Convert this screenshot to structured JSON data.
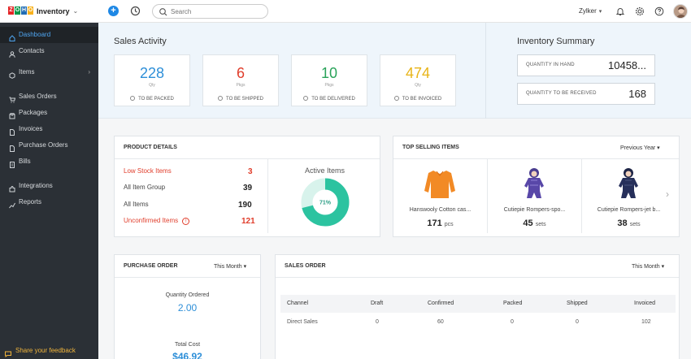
{
  "app": {
    "brand_letters": [
      "Z",
      "O",
      "H",
      "O"
    ],
    "brand_colors": [
      "#e42527",
      "#089949",
      "#226db4",
      "#f9b21d"
    ],
    "name": "Inventory",
    "search_placeholder": "Search",
    "org": "Zylker"
  },
  "sidebar": {
    "items": [
      {
        "label": "Dashboard",
        "icon": "home-icon",
        "active": true
      },
      {
        "label": "Contacts",
        "icon": "person-icon"
      },
      {
        "label": "Items",
        "icon": "box-icon",
        "chevron": "›"
      },
      {
        "label": "Sales Orders",
        "icon": "cart-icon"
      },
      {
        "label": "Packages",
        "icon": "package-icon"
      },
      {
        "label": "Invoices",
        "icon": "document-icon"
      },
      {
        "label": "Purchase Orders",
        "icon": "document-icon"
      },
      {
        "label": "Bills",
        "icon": "bill-icon"
      },
      {
        "label": "Integrations",
        "icon": "puzzle-icon"
      },
      {
        "label": "Reports",
        "icon": "chart-icon"
      }
    ],
    "feedback": "Share your feedback"
  },
  "sales_activity": {
    "title": "Sales Activity",
    "cards": [
      {
        "value": "228",
        "unit": "Qty",
        "label": "TO BE PACKED",
        "color": "#2e8fd8"
      },
      {
        "value": "6",
        "unit": "Pkgs",
        "label": "TO BE SHIPPED",
        "color": "#e03d2b"
      },
      {
        "value": "10",
        "unit": "Pkgs",
        "label": "TO BE DELIVERED",
        "color": "#2aa35a"
      },
      {
        "value": "474",
        "unit": "Qty",
        "label": "TO BE INVOICED",
        "color": "#e8b418"
      }
    ]
  },
  "inventory_summary": {
    "title": "Inventory Summary",
    "in_hand_label": "QUANTITY IN HAND",
    "in_hand_value": "10458...",
    "to_receive_label": "QUANTITY TO BE RECEIVED",
    "to_receive_value": "168"
  },
  "product_details": {
    "title": "PRODUCT DETAILS",
    "rows": [
      {
        "label": "Low Stock Items",
        "value": "3",
        "alert": true
      },
      {
        "label": "All Item Group",
        "value": "39"
      },
      {
        "label": "All Items",
        "value": "190"
      },
      {
        "label": "Unconfirmed Items",
        "value": "121",
        "alert": true
      }
    ],
    "active_title": "Active Items",
    "active_pct_label": "71%",
    "active_fraction": 0.71,
    "donut_color": "#2cc3a0",
    "donut_track": "#d8f3ec"
  },
  "top_selling": {
    "title": "TOP SELLING ITEMS",
    "period": "Previous Year",
    "items": [
      {
        "name": "Hanswooly Cotton cas...",
        "qty": "171",
        "unit": "pcs",
        "icon": "orange-sweater-icon"
      },
      {
        "name": "Cutiepie Rompers-spo...",
        "qty": "45",
        "unit": "sets",
        "icon": "purple-romper-icon"
      },
      {
        "name": "Cutiepie Rompers-jet b...",
        "qty": "38",
        "unit": "sets",
        "icon": "navy-romper-icon"
      }
    ]
  },
  "purchase_order": {
    "title": "PURCHASE ORDER",
    "period": "This Month",
    "qty_label": "Quantity Ordered",
    "qty_value": "2.00",
    "cost_label": "Total Cost",
    "cost_value": "$46.92"
  },
  "sales_order": {
    "title": "SALES ORDER",
    "period": "This Month",
    "headers": [
      "Channel",
      "Draft",
      "Confirmed",
      "Packed",
      "Shipped",
      "Invoiced"
    ],
    "rows": [
      [
        "Direct Sales",
        "0",
        "60",
        "0",
        "0",
        "102"
      ]
    ]
  }
}
